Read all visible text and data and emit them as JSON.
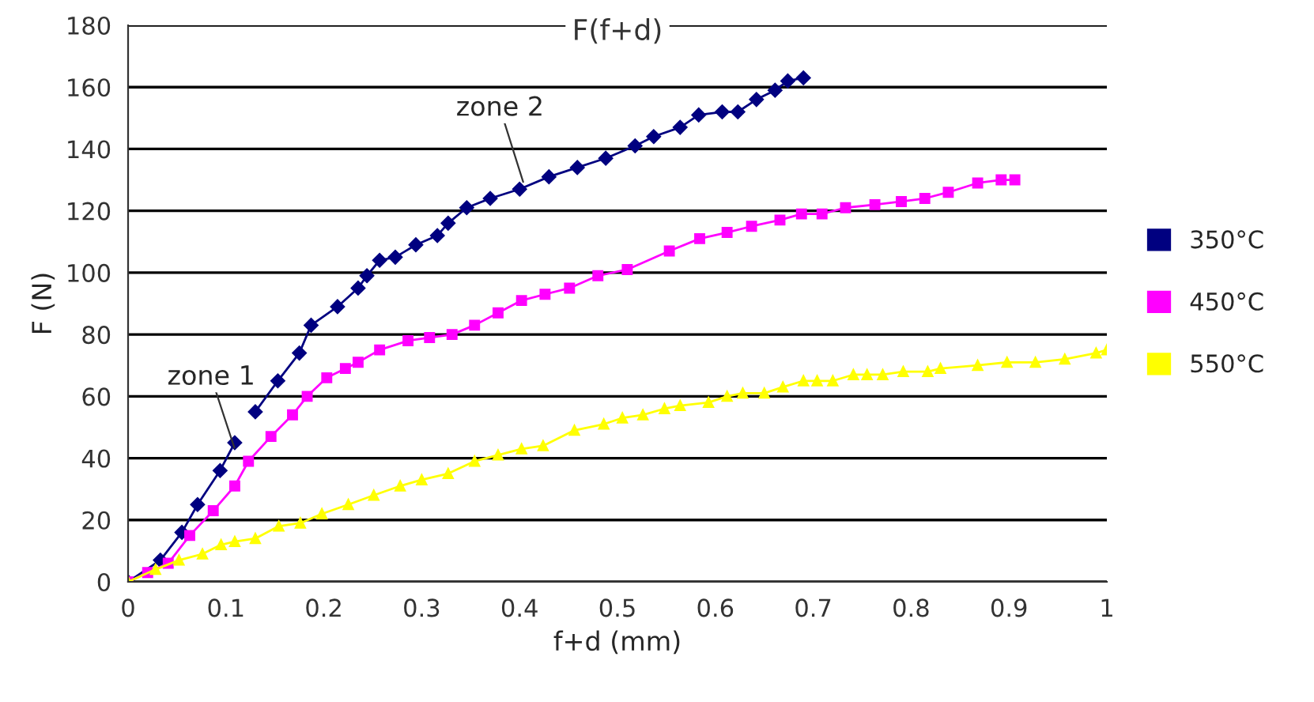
{
  "chart_data": {
    "type": "line",
    "title": "F(f+d)",
    "xlabel": "f+d (mm)",
    "ylabel": "F (N)",
    "xlim": [
      0,
      1
    ],
    "xticks": [
      0,
      0.1,
      0.2,
      0.3,
      0.4,
      0.5,
      0.6,
      0.7,
      0.8,
      0.9,
      1
    ],
    "ylim": [
      0,
      180
    ],
    "yticks": [
      0,
      20,
      40,
      60,
      80,
      100,
      120,
      140,
      160,
      180
    ],
    "grid": "y",
    "legend": "right",
    "line_style": "solid",
    "annotations": [
      {
        "text": "zone 1",
        "x": 0.11,
        "y": 42
      },
      {
        "text": "zone 2",
        "x": 0.405,
        "y": 128
      }
    ],
    "series": [
      {
        "name": "350°C",
        "color": "#000080",
        "marker": "diamond",
        "x": [
          0,
          0.033,
          0.055,
          0.071,
          0.094,
          0.109,
          0.12,
          0.13,
          0.153,
          0.175,
          0.187,
          0.214,
          0.235,
          0.244,
          0.257,
          0.273,
          0.294,
          0.316,
          0.327,
          0.346,
          0.37,
          0.4,
          0.43,
          0.459,
          0.488,
          0.518,
          0.537,
          0.564,
          0.583,
          0.607,
          0.623,
          0.642,
          0.661,
          0.674,
          0.69
        ],
        "values": [
          0,
          7,
          16,
          25,
          36,
          45,
          null,
          55,
          65,
          74,
          83,
          89,
          95,
          99,
          104,
          105,
          109,
          112,
          116,
          121,
          124,
          127,
          131,
          134,
          137,
          141,
          144,
          147,
          151,
          152,
          152,
          156,
          159,
          162,
          163
        ]
      },
      {
        "name": "450°C",
        "color": "#ff00ff",
        "marker": "square",
        "x": [
          0,
          0.02,
          0.041,
          0.063,
          0.087,
          0.109,
          0.123,
          0.146,
          0.168,
          0.183,
          0.203,
          0.222,
          0.235,
          0.257,
          0.286,
          0.308,
          0.331,
          0.354,
          0.378,
          0.402,
          0.426,
          0.451,
          0.48,
          0.51,
          0.553,
          0.584,
          0.612,
          0.637,
          0.666,
          0.688,
          0.709,
          0.733,
          0.763,
          0.79,
          0.814,
          0.838,
          0.868,
          0.892,
          0.906
        ],
        "values": [
          0,
          3,
          6,
          15,
          23,
          31,
          39,
          47,
          54,
          60,
          66,
          69,
          71,
          75,
          78,
          79,
          80,
          83,
          87,
          91,
          93,
          95,
          99,
          101,
          107,
          111,
          113,
          115,
          117,
          119,
          119,
          121,
          122,
          123,
          124,
          126,
          129,
          130,
          130
        ]
      },
      {
        "name": "550°C",
        "color": "#ffff00",
        "marker": "triangle",
        "x": [
          0,
          0.028,
          0.052,
          0.076,
          0.095,
          0.109,
          0.13,
          0.154,
          0.176,
          0.198,
          0.225,
          0.251,
          0.278,
          0.3,
          0.327,
          0.354,
          0.378,
          0.402,
          0.424,
          0.456,
          0.486,
          0.505,
          0.526,
          0.548,
          0.564,
          0.593,
          0.612,
          0.628,
          0.65,
          0.669,
          0.69,
          0.704,
          0.72,
          0.741,
          0.755,
          0.771,
          0.792,
          0.817,
          0.83,
          0.868,
          0.898,
          0.927,
          0.957,
          0.989,
          1
        ],
        "values": [
          0,
          4,
          7,
          9,
          12,
          13,
          14,
          18,
          19,
          22,
          25,
          28,
          31,
          33,
          35,
          39,
          41,
          43,
          44,
          49,
          51,
          53,
          54,
          56,
          57,
          58,
          60,
          61,
          61,
          63,
          65,
          65,
          65,
          67,
          67,
          67,
          68,
          68,
          69,
          70,
          71,
          71,
          72,
          74,
          75
        ]
      }
    ]
  }
}
